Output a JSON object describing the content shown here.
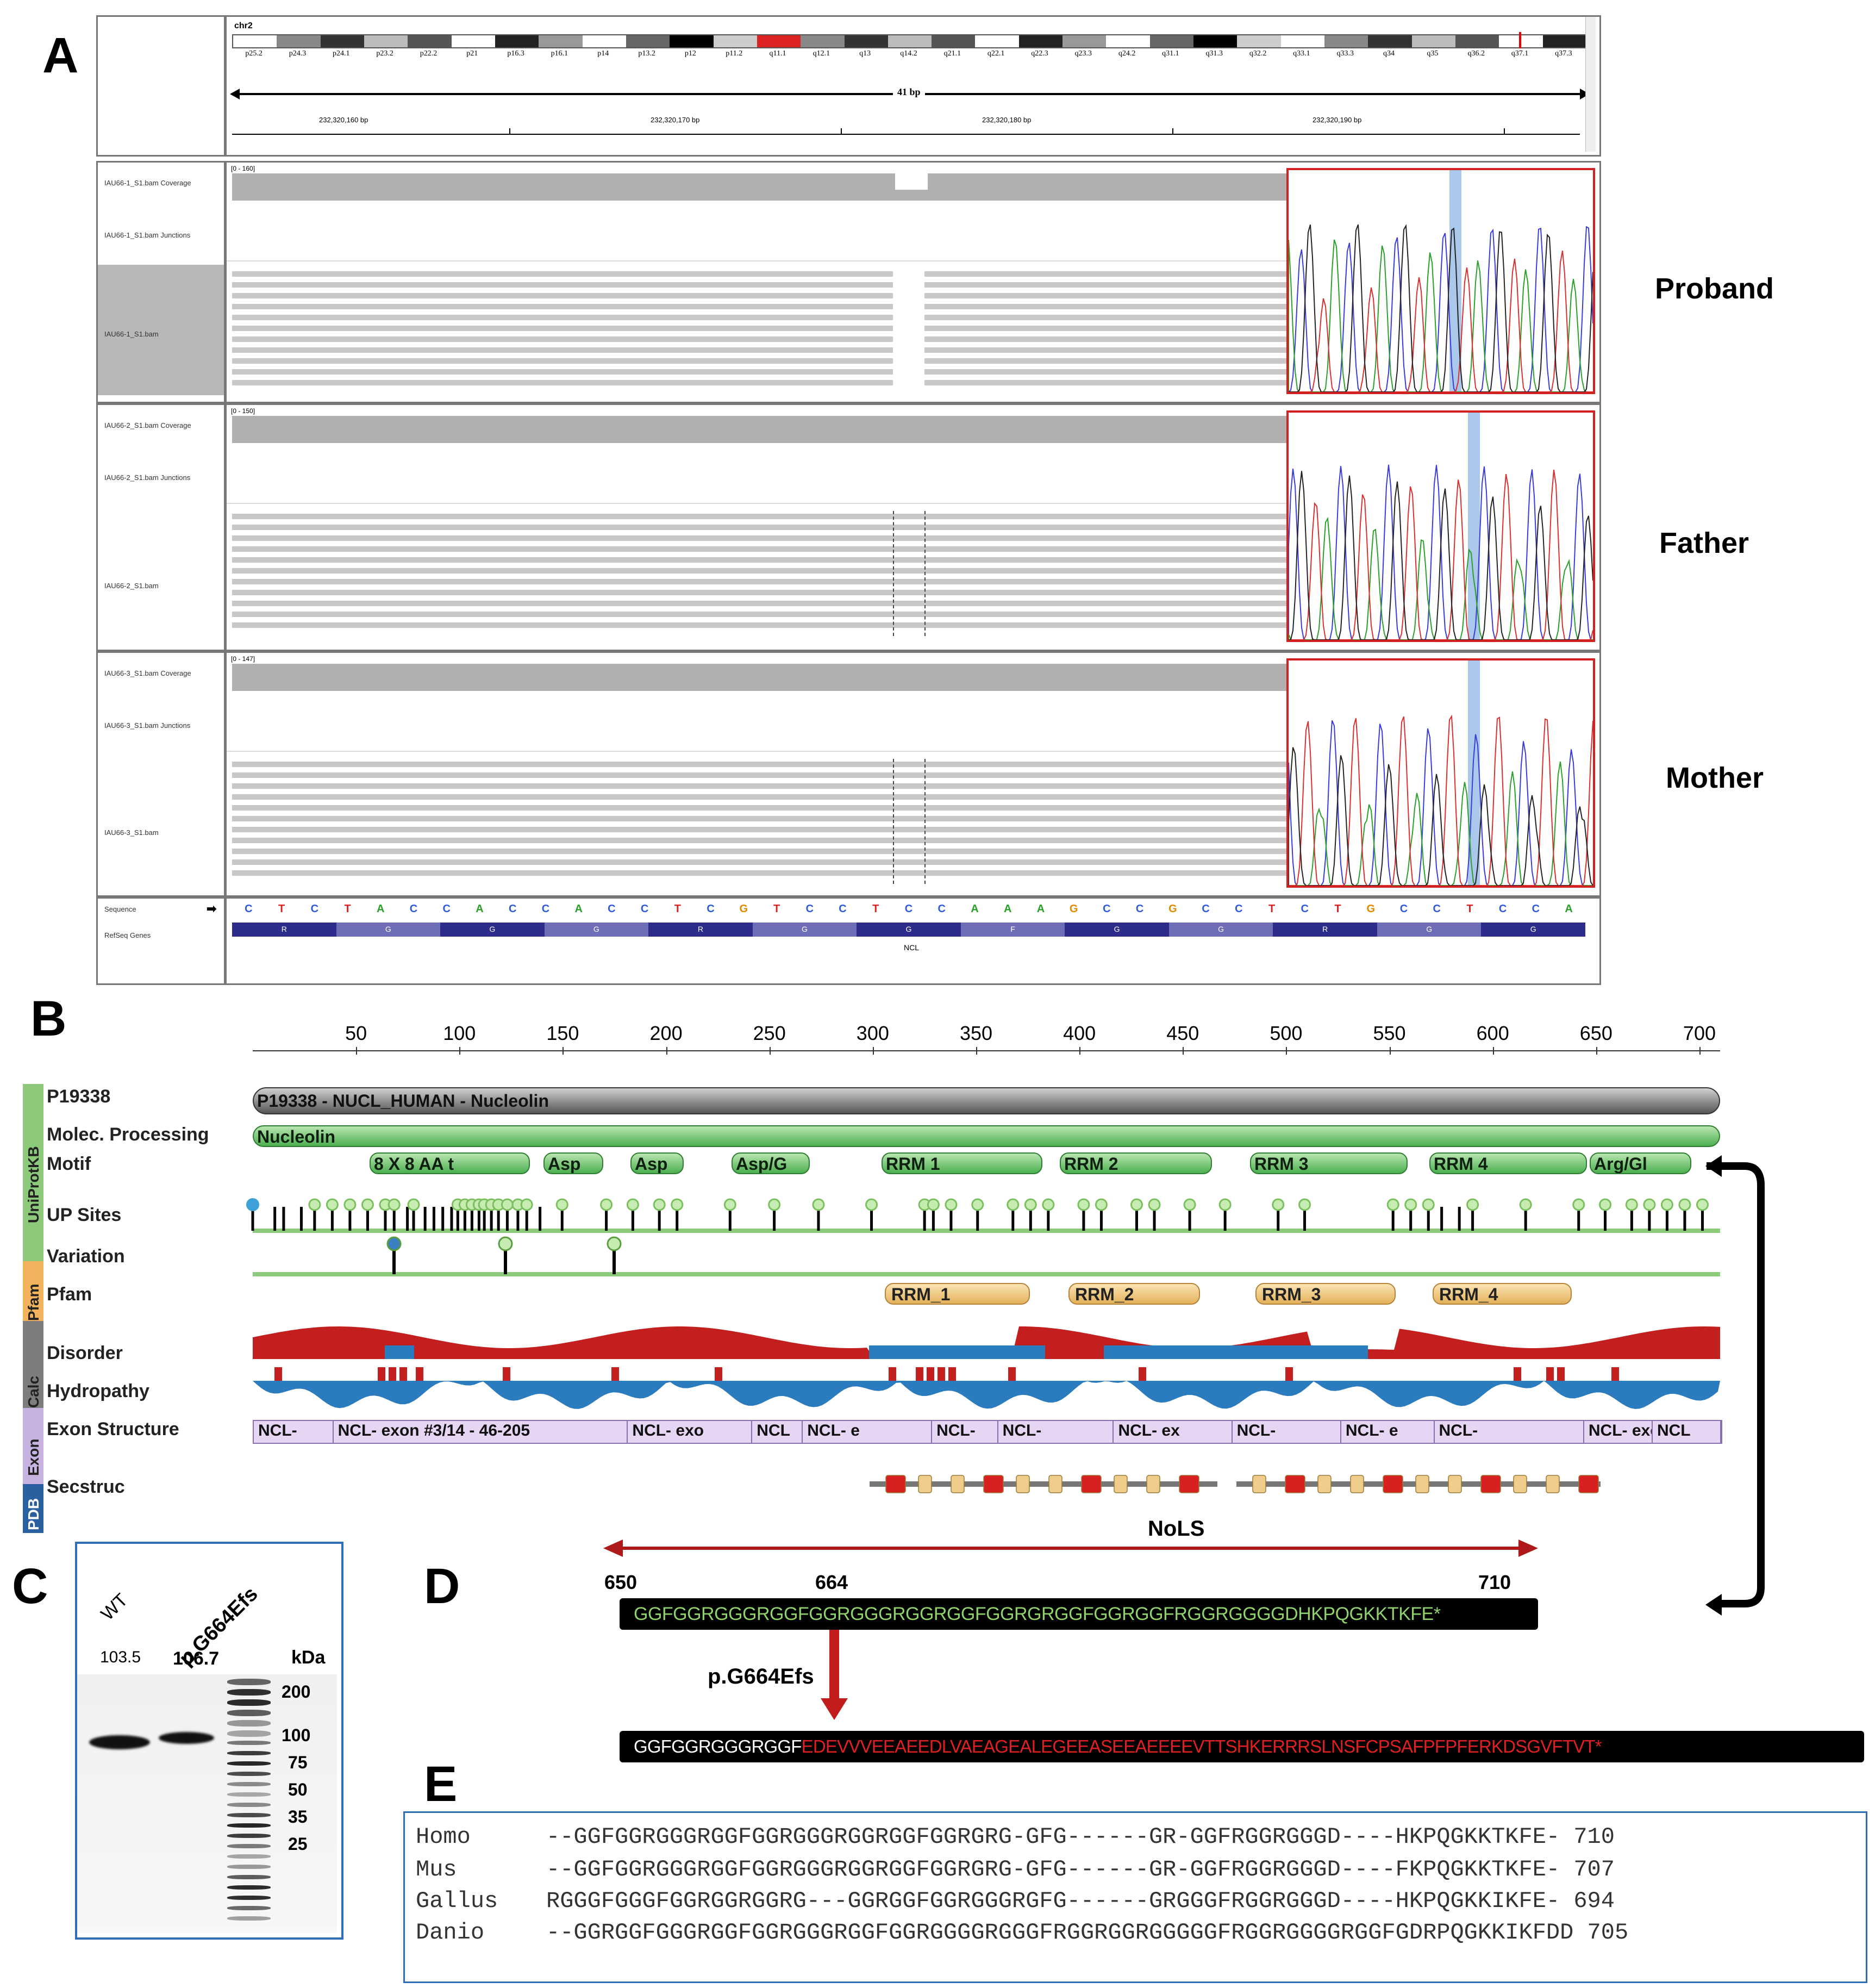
{
  "panelA": {
    "letter": "A",
    "chromosome": "chr2",
    "bands": [
      "p25.2",
      "p24.3",
      "p24.1",
      "p23.2",
      "p22.2",
      "p21",
      "p16.3",
      "p16.1",
      "p14",
      "p13.2",
      "p12",
      "p11.2",
      "q11.1",
      "q12.1",
      "q13",
      "q14.2",
      "q21.1",
      "q22.1",
      "q22.3",
      "q23.3",
      "q24.2",
      "q31.1",
      "q31.3",
      "q32.2",
      "q33.1",
      "q33.3",
      "q34",
      "q35",
      "q36.2",
      "q37.1",
      "q37.3"
    ],
    "span": "41 bp",
    "positions": [
      "232,320,160 bp",
      "232,320,170 bp",
      "232,320,180 bp",
      "232,320,190 bp"
    ],
    "samples": [
      {
        "name": "Proband",
        "coverage_track": "IAU66-1_S1.bam Coverage",
        "junction_track": "IAU66-1_S1.bam Junctions",
        "bam_track": "IAU66-1_S1.bam",
        "range": "[0 - 160]"
      },
      {
        "name": "Father",
        "coverage_track": "IAU66-2_S1.bam Coverage",
        "junction_track": "IAU66-2_S1.bam Junctions",
        "bam_track": "IAU66-2_S1.bam",
        "range": "[0 - 150]"
      },
      {
        "name": "Mother",
        "coverage_track": "IAU66-3_S1.bam Coverage",
        "junction_track": "IAU66-3_S1.bam Junctions",
        "bam_track": "IAU66-3_S1.bam",
        "range": "[0 - 147]"
      }
    ],
    "sequence_label": "Sequence",
    "refseq_label": "RefSeq Genes",
    "gene": "NCL",
    "sequence": [
      "C",
      "T",
      "C",
      "T",
      "A",
      "C",
      "C",
      "A",
      "C",
      "C",
      "A",
      "C",
      "C",
      "T",
      "C",
      "G",
      "T",
      "C",
      "C",
      "T",
      "C",
      "C",
      "A",
      "A",
      "A",
      "G",
      "C",
      "C",
      "G",
      "C",
      "C",
      "T",
      "C",
      "T",
      "G",
      "C",
      "C",
      "T",
      "C",
      "C",
      "A"
    ],
    "amino_acids": [
      "R",
      "G",
      "G",
      "G",
      "R",
      "G",
      "G",
      "F",
      "G",
      "G",
      "R",
      "G",
      "G"
    ]
  },
  "panelB": {
    "letter": "B",
    "ticks": [
      "50",
      "100",
      "150",
      "200",
      "250",
      "300",
      "350",
      "400",
      "450",
      "500",
      "550",
      "600",
      "650",
      "700"
    ],
    "tracks": {
      "p19338": "P19338",
      "molec": "Molec. Processing",
      "motif": "Motif",
      "upsites": "UP Sites",
      "variation": "Variation",
      "pfam": "Pfam",
      "disorder": "Disorder",
      "hydropathy": "Hydropathy",
      "exon": "Exon Structure",
      "secstruc": "Secstruc"
    },
    "side_groups": [
      "UniProtKB",
      "Pfam",
      "Calc",
      "Exon",
      "PDB"
    ],
    "protein_bar": "P19338 - NUCL_HUMAN - Nucleolin",
    "molec_bar": "Nucleolin",
    "motifs": [
      "8 X 8 AA t",
      "Asp",
      "Asp",
      "Asp/G",
      "RRM 1",
      "RRM 2",
      "RRM 3",
      "RRM 4",
      "Arg/Gl"
    ],
    "pfam": [
      "RRM_1",
      "RRM_2",
      "RRM_3",
      "RRM_4"
    ],
    "exons": [
      "NCL-",
      "NCL- exon #3/14 - 46-205",
      "NCL- exo",
      "NCL",
      "NCL- e",
      "NCL-",
      "NCL-",
      "NCL- ex",
      "NCL-",
      "NCL- e",
      "NCL-",
      "NCL- exon",
      "NCL"
    ],
    "nols": "NoLS"
  },
  "panelC": {
    "letter": "C",
    "lanes": [
      "WT",
      "p.G664Efs"
    ],
    "sizes": [
      "103.5",
      "106.7"
    ],
    "kda_label": "kDa",
    "markers": [
      "200",
      "100",
      "75",
      "50",
      "35",
      "25"
    ]
  },
  "panelD": {
    "letter": "D",
    "pos_start": "650",
    "pos_mut": "664",
    "pos_end": "710",
    "wt_seq": "GGFGGRGGGRGGFGGRGGGRGGRGGFGGRGRGGFGGRGGFRGGRGGGGDHKPQGKKTKFE*",
    "mutation": "p.G664Efs",
    "mut_prefix": "GGFGGRGGGRGGF",
    "mut_suffix": "EDEVVVEEAEEDLVAEAGEALEGEEASEEAEEEEVTTSHKERRRSLNSFCPSAFPFPFERKDSGVFTVT*"
  },
  "panelE": {
    "letter": "E",
    "rows": [
      {
        "species": "Homo",
        "seq": "--GGFGGRGGGRGGFGGRGGGRGGRGGFGGRGRG-GFG------GR-GGFRGGRGGGD----HKPQGKKTKFE-",
        "end": "710"
      },
      {
        "species": "Mus",
        "seq": "--GGFGGRGGGRGGFGGRGGGRGGRGGFGGRGRG-GFG------GR-GGFRGGRGGGD----FKPQGKKTKFE-",
        "end": "707"
      },
      {
        "species": "Gallus",
        "seq": "RGGGFGGGFGGRGGRGGRG---GGRGGFGGRGGGRGFG------GRGGGFRGGRGGGD----HKPQGKKIKFE-",
        "end": "694"
      },
      {
        "species": "Danio",
        "seq": "--GGRGGFGGGRGGFGGRGGGRGGFGGRGGGGRGGGFRGGRGGRGGGGGFRGGRGGGGRGGFGDRPQGKKIKFDD",
        "end": "705"
      }
    ]
  },
  "colors": {
    "disorder_red": "#c41f1f",
    "hydro_blue": "#2b7bbf",
    "green_track": "#8cc97a",
    "highlight_red": "#cc1f1f"
  }
}
